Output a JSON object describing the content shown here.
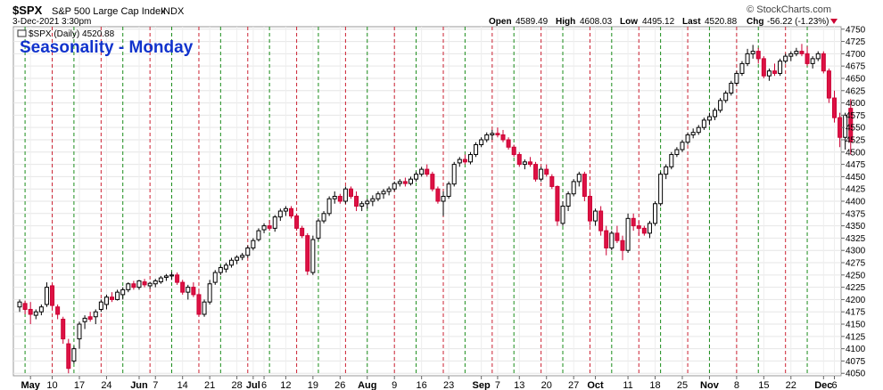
{
  "header": {
    "symbol": "$SPX",
    "name": "S&P 500 Large Cap Index",
    "exchange": "INDX",
    "date": "3-Dec-2021 3:30pm",
    "open_label": "Open",
    "open": "4589.49",
    "high_label": "High",
    "high": "4608.03",
    "low_label": "Low",
    "low": "4495.12",
    "last_label": "Last",
    "last": "4520.88",
    "chg_label": "Chg",
    "chg": "-56.22 (-1.23%)",
    "watermark": "© StockCharts.com"
  },
  "chart_data": {
    "type": "candlestick",
    "title": "Seasonality - Monday",
    "legend": "$SPX (Daily) 4520.88",
    "ylim": [
      4045,
      4755
    ],
    "yticks": [
      4050,
      4075,
      4100,
      4125,
      4150,
      4175,
      4200,
      4225,
      4250,
      4275,
      4300,
      4325,
      4350,
      4375,
      4400,
      4425,
      4450,
      4475,
      4500,
      4525,
      4550,
      4575,
      4600,
      4625,
      4650,
      4675,
      4700,
      4725,
      4750
    ],
    "xticks": [
      {
        "label": "May",
        "i": 2,
        "bold": true
      },
      {
        "label": "10",
        "i": 6
      },
      {
        "label": "17",
        "i": 11
      },
      {
        "label": "24",
        "i": 16
      },
      {
        "label": "Jun",
        "i": 22,
        "bold": true
      },
      {
        "label": "7",
        "i": 25
      },
      {
        "label": "14",
        "i": 30
      },
      {
        "label": "21",
        "i": 35
      },
      {
        "label": "28",
        "i": 40
      },
      {
        "label": "Jul",
        "i": 43,
        "bold": true
      },
      {
        "label": "6",
        "i": 45
      },
      {
        "label": "12",
        "i": 49
      },
      {
        "label": "19",
        "i": 54
      },
      {
        "label": "26",
        "i": 59
      },
      {
        "label": "Aug",
        "i": 64,
        "bold": true
      },
      {
        "label": "9",
        "i": 69
      },
      {
        "label": "16",
        "i": 74
      },
      {
        "label": "23",
        "i": 79
      },
      {
        "label": "Sep",
        "i": 85,
        "bold": true
      },
      {
        "label": "7",
        "i": 88
      },
      {
        "label": "13",
        "i": 92
      },
      {
        "label": "20",
        "i": 97
      },
      {
        "label": "27",
        "i": 102
      },
      {
        "label": "Oct",
        "i": 106,
        "bold": true
      },
      {
        "label": "11",
        "i": 112
      },
      {
        "label": "18",
        "i": 117
      },
      {
        "label": "25",
        "i": 122
      },
      {
        "label": "Nov",
        "i": 127,
        "bold": true
      },
      {
        "label": "8",
        "i": 132
      },
      {
        "label": "15",
        "i": 137
      },
      {
        "label": "22",
        "i": 142
      },
      {
        "label": "Dec",
        "i": 148,
        "bold": true
      },
      {
        "label": "6",
        "i": 150
      }
    ],
    "mondays_green": [
      1,
      10,
      19,
      28,
      37,
      46,
      55,
      64,
      73,
      82,
      91,
      100,
      109,
      118,
      127,
      136,
      145
    ],
    "mondays_red": [
      6,
      15,
      24,
      33,
      42,
      51,
      60,
      69,
      78,
      87,
      96,
      105,
      114,
      123,
      132,
      141
    ],
    "ohlc": [
      [
        4185,
        4200,
        4175,
        4195
      ],
      [
        4192,
        4198,
        4170,
        4180
      ],
      [
        4180,
        4195,
        4150,
        4170
      ],
      [
        4168,
        4180,
        4160,
        4175
      ],
      [
        4175,
        4190,
        4168,
        4185
      ],
      [
        4190,
        4235,
        4185,
        4225
      ],
      [
        4228,
        4232,
        4180,
        4188
      ],
      [
        4185,
        4190,
        4160,
        4170
      ],
      [
        4160,
        4165,
        4110,
        4120
      ],
      [
        4110,
        4120,
        4050,
        4060
      ],
      [
        4075,
        4105,
        4070,
        4100
      ],
      [
        4120,
        4155,
        4100,
        4150
      ],
      [
        4155,
        4168,
        4140,
        4162
      ],
      [
        4165,
        4175,
        4155,
        4160
      ],
      [
        4165,
        4180,
        4150,
        4175
      ],
      [
        4180,
        4200,
        4175,
        4195
      ],
      [
        4190,
        4210,
        4180,
        4205
      ],
      [
        4205,
        4215,
        4195,
        4200
      ],
      [
        4200,
        4220,
        4198,
        4215
      ],
      [
        4210,
        4225,
        4200,
        4220
      ],
      [
        4220,
        4235,
        4215,
        4232
      ],
      [
        4232,
        4238,
        4220,
        4225
      ],
      [
        4225,
        4240,
        4220,
        4238
      ],
      [
        4236,
        4242,
        4225,
        4230
      ],
      [
        4228,
        4236,
        4222,
        4233
      ],
      [
        4232,
        4242,
        4225,
        4238
      ],
      [
        4236,
        4248,
        4232,
        4244
      ],
      [
        4245,
        4252,
        4238,
        4248
      ],
      [
        4248,
        4256,
        4240,
        4250
      ],
      [
        4250,
        4255,
        4230,
        4235
      ],
      [
        4235,
        4240,
        4210,
        4215
      ],
      [
        4215,
        4230,
        4200,
        4225
      ],
      [
        4225,
        4235,
        4205,
        4210
      ],
      [
        4210,
        4215,
        4165,
        4170
      ],
      [
        4170,
        4200,
        4165,
        4195
      ],
      [
        4195,
        4240,
        4190,
        4232
      ],
      [
        4235,
        4260,
        4230,
        4255
      ],
      [
        4255,
        4270,
        4250,
        4265
      ],
      [
        4262,
        4275,
        4255,
        4270
      ],
      [
        4270,
        4285,
        4265,
        4280
      ],
      [
        4280,
        4290,
        4272,
        4286
      ],
      [
        4286,
        4295,
        4280,
        4290
      ],
      [
        4290,
        4310,
        4285,
        4305
      ],
      [
        4305,
        4325,
        4300,
        4320
      ],
      [
        4322,
        4345,
        4318,
        4340
      ],
      [
        4342,
        4355,
        4335,
        4350
      ],
      [
        4350,
        4362,
        4340,
        4345
      ],
      [
        4345,
        4372,
        4338,
        4368
      ],
      [
        4368,
        4385,
        4360,
        4380
      ],
      [
        4380,
        4390,
        4370,
        4385
      ],
      [
        4385,
        4390,
        4365,
        4370
      ],
      [
        4370,
        4375,
        4340,
        4345
      ],
      [
        4345,
        4350,
        4325,
        4330
      ],
      [
        4330,
        4335,
        4250,
        4258
      ],
      [
        4255,
        4330,
        4250,
        4322
      ],
      [
        4325,
        4365,
        4320,
        4360
      ],
      [
        4360,
        4380,
        4355,
        4375
      ],
      [
        4375,
        4410,
        4370,
        4405
      ],
      [
        4405,
        4420,
        4395,
        4410
      ],
      [
        4410,
        4415,
        4395,
        4400
      ],
      [
        4400,
        4430,
        4395,
        4425
      ],
      [
        4425,
        4430,
        4405,
        4410
      ],
      [
        4410,
        4420,
        4380,
        4390
      ],
      [
        4390,
        4400,
        4380,
        4395
      ],
      [
        4395,
        4405,
        4385,
        4400
      ],
      [
        4400,
        4412,
        4390,
        4405
      ],
      [
        4405,
        4420,
        4400,
        4415
      ],
      [
        4415,
        4425,
        4405,
        4420
      ],
      [
        4420,
        4430,
        4412,
        4425
      ],
      [
        4425,
        4440,
        4420,
        4436
      ],
      [
        4436,
        4445,
        4430,
        4440
      ],
      [
        4440,
        4448,
        4430,
        4436
      ],
      [
        4436,
        4450,
        4432,
        4445
      ],
      [
        4445,
        4460,
        4440,
        4455
      ],
      [
        4455,
        4470,
        4450,
        4465
      ],
      [
        4465,
        4475,
        4450,
        4455
      ],
      [
        4455,
        4460,
        4420,
        4425
      ],
      [
        4425,
        4430,
        4395,
        4400
      ],
      [
        4400,
        4420,
        4370,
        4410
      ],
      [
        4410,
        4440,
        4405,
        4435
      ],
      [
        4435,
        4480,
        4430,
        4475
      ],
      [
        4478,
        4490,
        4470,
        4485
      ],
      [
        4485,
        4495,
        4475,
        4480
      ],
      [
        4480,
        4500,
        4475,
        4495
      ],
      [
        4495,
        4520,
        4490,
        4515
      ],
      [
        4515,
        4530,
        4510,
        4525
      ],
      [
        4525,
        4540,
        4520,
        4535
      ],
      [
        4535,
        4545,
        4525,
        4538
      ],
      [
        4538,
        4550,
        4530,
        4535
      ],
      [
        4535,
        4545,
        4520,
        4525
      ],
      [
        4525,
        4530,
        4505,
        4510
      ],
      [
        4510,
        4515,
        4490,
        4495
      ],
      [
        4495,
        4500,
        4470,
        4475
      ],
      [
        4475,
        4485,
        4465,
        4480
      ],
      [
        4480,
        4490,
        4470,
        4475
      ],
      [
        4475,
        4480,
        4440,
        4445
      ],
      [
        4445,
        4470,
        4440,
        4465
      ],
      [
        4465,
        4475,
        4450,
        4455
      ],
      [
        4450,
        4455,
        4425,
        4430
      ],
      [
        4430,
        4432,
        4350,
        4360
      ],
      [
        4355,
        4400,
        4350,
        4390
      ],
      [
        4390,
        4420,
        4380,
        4415
      ],
      [
        4415,
        4445,
        4410,
        4440
      ],
      [
        4440,
        4460,
        4430,
        4455
      ],
      [
        4455,
        4460,
        4400,
        4410
      ],
      [
        4410,
        4420,
        4350,
        4360
      ],
      [
        4360,
        4385,
        4350,
        4380
      ],
      [
        4380,
        4390,
        4330,
        4340
      ],
      [
        4340,
        4350,
        4290,
        4305
      ],
      [
        4305,
        4340,
        4300,
        4335
      ],
      [
        4335,
        4350,
        4315,
        4320
      ],
      [
        4320,
        4330,
        4280,
        4300
      ],
      [
        4300,
        4375,
        4295,
        4365
      ],
      [
        4365,
        4375,
        4340,
        4350
      ],
      [
        4350,
        4360,
        4330,
        4345
      ],
      [
        4345,
        4350,
        4330,
        4335
      ],
      [
        4335,
        4360,
        4325,
        4355
      ],
      [
        4355,
        4400,
        4350,
        4395
      ],
      [
        4395,
        4460,
        4390,
        4455
      ],
      [
        4455,
        4475,
        4445,
        4470
      ],
      [
        4470,
        4500,
        4465,
        4495
      ],
      [
        4495,
        4510,
        4490,
        4505
      ],
      [
        4505,
        4525,
        4500,
        4520
      ],
      [
        4520,
        4540,
        4515,
        4535
      ],
      [
        4535,
        4548,
        4528,
        4540
      ],
      [
        4540,
        4555,
        4535,
        4550
      ],
      [
        4550,
        4570,
        4545,
        4565
      ],
      [
        4565,
        4580,
        4555,
        4572
      ],
      [
        4572,
        4590,
        4565,
        4585
      ],
      [
        4585,
        4610,
        4580,
        4605
      ],
      [
        4605,
        4625,
        4600,
        4620
      ],
      [
        4620,
        4645,
        4615,
        4640
      ],
      [
        4640,
        4665,
        4635,
        4660
      ],
      [
        4660,
        4685,
        4655,
        4680
      ],
      [
        4680,
        4710,
        4675,
        4700
      ],
      [
        4700,
        4718,
        4690,
        4705
      ],
      [
        4705,
        4712,
        4680,
        4690
      ],
      [
        4690,
        4695,
        4650,
        4655
      ],
      [
        4655,
        4670,
        4645,
        4665
      ],
      [
        4665,
        4680,
        4655,
        4660
      ],
      [
        4660,
        4690,
        4655,
        4685
      ],
      [
        4685,
        4700,
        4680,
        4695
      ],
      [
        4695,
        4705,
        4685,
        4700
      ],
      [
        4700,
        4712,
        4695,
        4705
      ],
      [
        4705,
        4720,
        4695,
        4700
      ],
      [
        4700,
        4715,
        4675,
        4680
      ],
      [
        4680,
        4695,
        4670,
        4690
      ],
      [
        4690,
        4705,
        4685,
        4700
      ],
      [
        4700,
        4705,
        4660,
        4665
      ],
      [
        4665,
        4670,
        4600,
        4610
      ],
      [
        4610,
        4625,
        4560,
        4570
      ],
      [
        4570,
        4580,
        4510,
        4530
      ],
      [
        4530,
        4580,
        4505,
        4575
      ],
      [
        4589,
        4608,
        4495,
        4521
      ]
    ]
  }
}
